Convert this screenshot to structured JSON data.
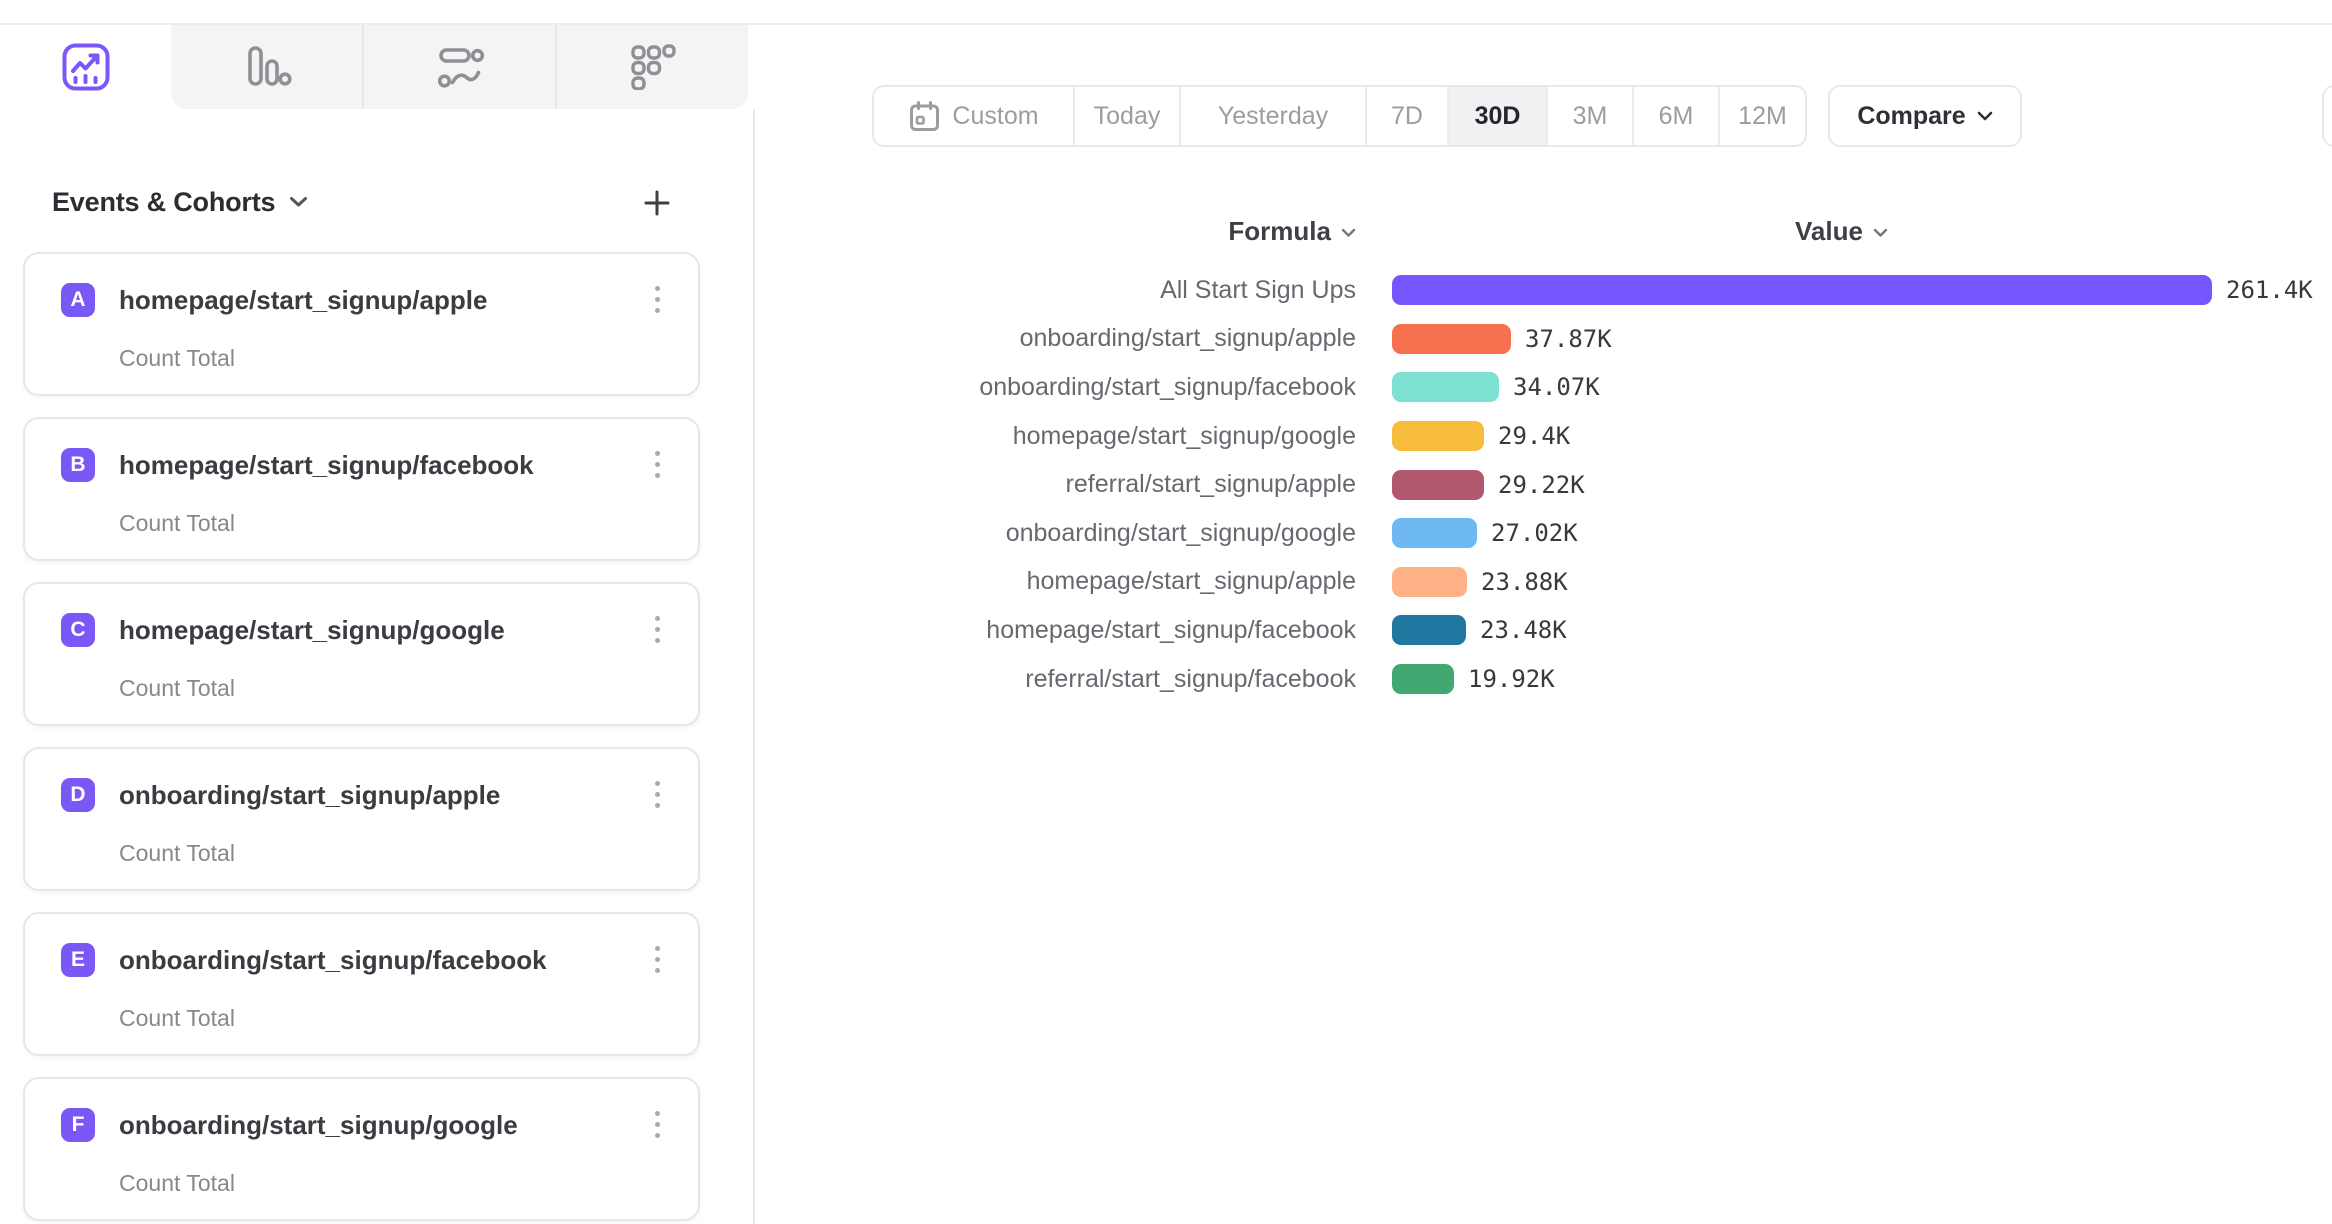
{
  "accent_color": "#7856FF",
  "top_tabs": [
    {
      "name": "insights",
      "active": true
    },
    {
      "name": "funnels",
      "active": false
    },
    {
      "name": "flows",
      "active": false
    },
    {
      "name": "retention",
      "active": false
    }
  ],
  "sidebar": {
    "title": "Events & Cohorts",
    "add_label": "+",
    "events": [
      {
        "letter": "A",
        "name": "homepage/start_signup/apple",
        "metric": "Count Total",
        "badge_color": "#7A58F6"
      },
      {
        "letter": "B",
        "name": "homepage/start_signup/facebook",
        "metric": "Count Total",
        "badge_color": "#7A58F6"
      },
      {
        "letter": "C",
        "name": "homepage/start_signup/google",
        "metric": "Count Total",
        "badge_color": "#7A58F6"
      },
      {
        "letter": "D",
        "name": "onboarding/start_signup/apple",
        "metric": "Count Total",
        "badge_color": "#7A58F6"
      },
      {
        "letter": "E",
        "name": "onboarding/start_signup/facebook",
        "metric": "Count Total",
        "badge_color": "#7A58F6"
      },
      {
        "letter": "F",
        "name": "onboarding/start_signup/google",
        "metric": "Count Total",
        "badge_color": "#7A58F6"
      }
    ]
  },
  "toolbar": {
    "date_ranges": [
      {
        "label": "Custom",
        "icon": "calendar",
        "selected": false
      },
      {
        "label": "Today",
        "selected": false
      },
      {
        "label": "Yesterday",
        "selected": false
      },
      {
        "label": "7D",
        "selected": false
      },
      {
        "label": "30D",
        "selected": true
      },
      {
        "label": "3M",
        "selected": false
      },
      {
        "label": "6M",
        "selected": false
      },
      {
        "label": "12M",
        "selected": false
      }
    ],
    "compare_label": "Compare"
  },
  "chart": {
    "formula_header": "Formula",
    "value_header": "Value"
  },
  "chart_data": {
    "type": "bar",
    "orientation": "horizontal",
    "title": "",
    "xlabel": "Value",
    "ylabel": "Formula",
    "xlim": [
      0,
      261400
    ],
    "grid": false,
    "legend": "none",
    "categories": [
      "All Start Sign Ups",
      "onboarding/start_signup/apple",
      "onboarding/start_signup/facebook",
      "homepage/start_signup/google",
      "referral/start_signup/apple",
      "onboarding/start_signup/google",
      "homepage/start_signup/apple",
      "homepage/start_signup/facebook",
      "referral/start_signup/facebook"
    ],
    "values": [
      261400,
      37870,
      34070,
      29400,
      29220,
      27020,
      23880,
      23480,
      19920
    ],
    "value_labels": [
      "261.4K",
      "37.87K",
      "34.07K",
      "29.4K",
      "29.22K",
      "27.02K",
      "23.88K",
      "23.48K",
      "19.92K"
    ],
    "colors": [
      "#7856FF",
      "#F8714F",
      "#7CE0D3",
      "#F7BC3B",
      "#B1576E",
      "#6FB9F3",
      "#FFB188",
      "#1E78A0",
      "#41A871"
    ]
  }
}
